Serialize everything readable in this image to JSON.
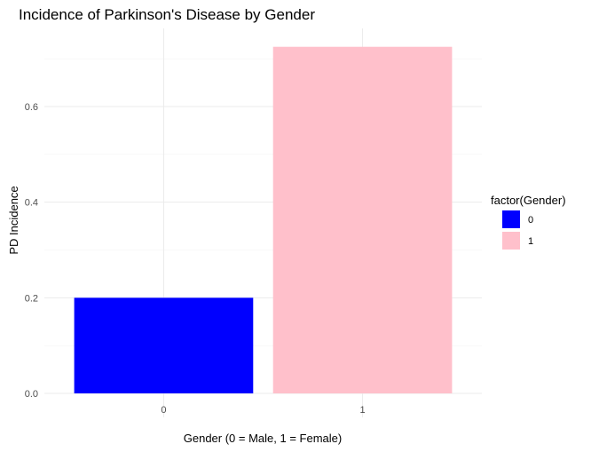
{
  "chart_data": {
    "type": "bar",
    "title": "Incidence of Parkinson's Disease by Gender",
    "xlabel": "Gender (0 = Male, 1 = Female)",
    "ylabel": "PD Incidence",
    "categories": [
      "0",
      "1"
    ],
    "values": [
      0.2,
      0.725
    ],
    "bar_colors": [
      "#0000ff",
      "#ffc0cb"
    ],
    "ylim": [
      0,
      0.76
    ],
    "y_ticks": [
      "0.0",
      "0.2",
      "0.4",
      "0.6"
    ],
    "grid": true,
    "legend": {
      "title": "factor(Gender)",
      "position": "right",
      "items": [
        {
          "label": "0",
          "color": "#0000ff"
        },
        {
          "label": "1",
          "color": "#ffc0cb"
        }
      ]
    }
  }
}
